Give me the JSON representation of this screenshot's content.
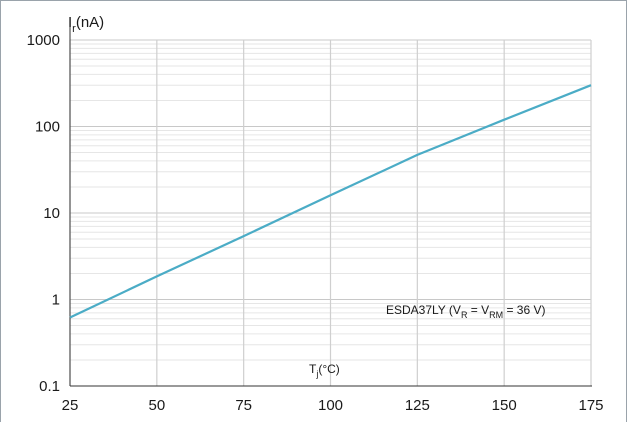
{
  "chart_data": {
    "type": "line",
    "title": "",
    "ylabel_main": "I",
    "ylabel_sub": "r",
    "ylabel_unit": "(nA)",
    "xlabel_main": "T",
    "xlabel_sub": "j",
    "xlabel_unit": "(°C)",
    "y_scale": "log",
    "xlim": [
      25,
      175
    ],
    "ylim": [
      0.1,
      1000
    ],
    "x_ticks": [
      25,
      50,
      75,
      100,
      125,
      150,
      175
    ],
    "y_ticks": [
      {
        "value": 0.1,
        "label": "0.1"
      },
      {
        "value": 1,
        "label": "1"
      },
      {
        "value": 10,
        "label": "10"
      },
      {
        "value": 100,
        "label": "100"
      },
      {
        "value": 1000,
        "label": "1000"
      }
    ],
    "grid": true,
    "annotation": {
      "prefix": "ESDA37LY (V",
      "sub1": "R",
      "mid": " = V",
      "sub2": "RM",
      "suffix": " = 36 V)"
    },
    "series": [
      {
        "color": "#4bacc6",
        "x": [
          25,
          50,
          75,
          100,
          125,
          150,
          175
        ],
        "y": [
          0.62,
          1.85,
          5.4,
          16,
          47,
          120,
          300
        ]
      }
    ]
  }
}
